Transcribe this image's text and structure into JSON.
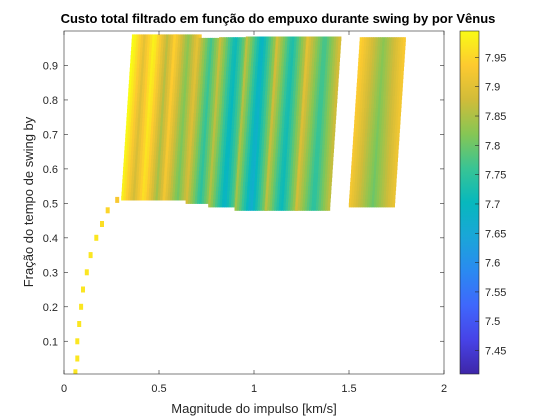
{
  "chart_data": {
    "type": "heatmap",
    "title": "Custo total filtrado em função do empuxo durante swing by por Vênus",
    "xlabel": "Magnitude do impulso [km/s]",
    "ylabel": "Fração do tempo de swing by",
    "xlim": [
      0,
      2
    ],
    "ylim": [
      0.005,
      1.0
    ],
    "xticks": [
      0,
      0.5,
      1,
      1.5,
      2
    ],
    "xtick_labels": [
      "0",
      "0.5",
      "1",
      "1.5",
      "2"
    ],
    "yticks": [
      0.1,
      0.2,
      0.3,
      0.4,
      0.5,
      0.6,
      0.7,
      0.8,
      0.9
    ],
    "ytick_labels": [
      "0.1",
      "0.2",
      "0.3",
      "0.4",
      "0.5",
      "0.6",
      "0.7",
      "0.8",
      "0.9"
    ],
    "colorbar": {
      "clim": [
        7.41,
        7.995
      ],
      "ticks": [
        7.45,
        7.5,
        7.55,
        7.6,
        7.65,
        7.7,
        7.75,
        7.8,
        7.85,
        7.9,
        7.95
      ],
      "tick_labels": [
        "7.45",
        "7.5",
        "7.55",
        "7.6",
        "7.65",
        "7.7",
        "7.75",
        "7.8",
        "7.85",
        "7.9",
        "7.95"
      ],
      "colormap": "parula"
    },
    "bands": [
      {
        "x_left": 0.3,
        "x_right": 0.42,
        "y_bottom": 0.51,
        "y_top": 0.98,
        "cost_edge": 7.98,
        "cost_center": 7.88
      },
      {
        "x_left": 0.42,
        "x_right": 0.54,
        "y_bottom": 0.51,
        "y_top": 0.98,
        "cost_edge": 7.95,
        "cost_center": 7.84
      },
      {
        "x_left": 0.52,
        "x_right": 0.66,
        "y_bottom": 0.51,
        "y_top": 0.98,
        "cost_edge": 7.92,
        "cost_center": 7.8
      },
      {
        "x_left": 0.64,
        "x_right": 0.78,
        "y_bottom": 0.5,
        "y_top": 0.98,
        "cost_edge": 7.88,
        "cost_center": 7.74
      },
      {
        "x_left": 0.76,
        "x_right": 0.92,
        "y_bottom": 0.49,
        "y_top": 0.98,
        "cost_edge": 7.85,
        "cost_center": 7.68
      },
      {
        "x_left": 0.9,
        "x_right": 1.06,
        "y_bottom": 0.48,
        "y_top": 0.98,
        "cost_edge": 7.84,
        "cost_center": 7.66
      },
      {
        "x_left": 1.06,
        "x_right": 1.22,
        "y_bottom": 0.48,
        "y_top": 0.98,
        "cost_edge": 7.86,
        "cost_center": 7.7
      },
      {
        "x_left": 1.22,
        "x_right": 1.4,
        "y_bottom": 0.48,
        "y_top": 0.98,
        "cost_edge": 7.88,
        "cost_center": 7.74
      },
      {
        "x_left": 1.5,
        "x_right": 1.74,
        "y_bottom": 0.49,
        "y_top": 0.98,
        "cost_edge": 7.92,
        "cost_center": 7.8
      }
    ],
    "trail_points": [
      {
        "x": 0.06,
        "y": 0.01,
        "cost": 7.97
      },
      {
        "x": 0.07,
        "y": 0.05,
        "cost": 7.97
      },
      {
        "x": 0.07,
        "y": 0.1,
        "cost": 7.97
      },
      {
        "x": 0.08,
        "y": 0.15,
        "cost": 7.97
      },
      {
        "x": 0.09,
        "y": 0.2,
        "cost": 7.97
      },
      {
        "x": 0.1,
        "y": 0.25,
        "cost": 7.97
      },
      {
        "x": 0.12,
        "y": 0.3,
        "cost": 7.97
      },
      {
        "x": 0.14,
        "y": 0.35,
        "cost": 7.97
      },
      {
        "x": 0.17,
        "y": 0.4,
        "cost": 7.97
      },
      {
        "x": 0.2,
        "y": 0.44,
        "cost": 7.96
      },
      {
        "x": 0.23,
        "y": 0.48,
        "cost": 7.95
      },
      {
        "x": 0.28,
        "y": 0.51,
        "cost": 7.93
      }
    ]
  }
}
